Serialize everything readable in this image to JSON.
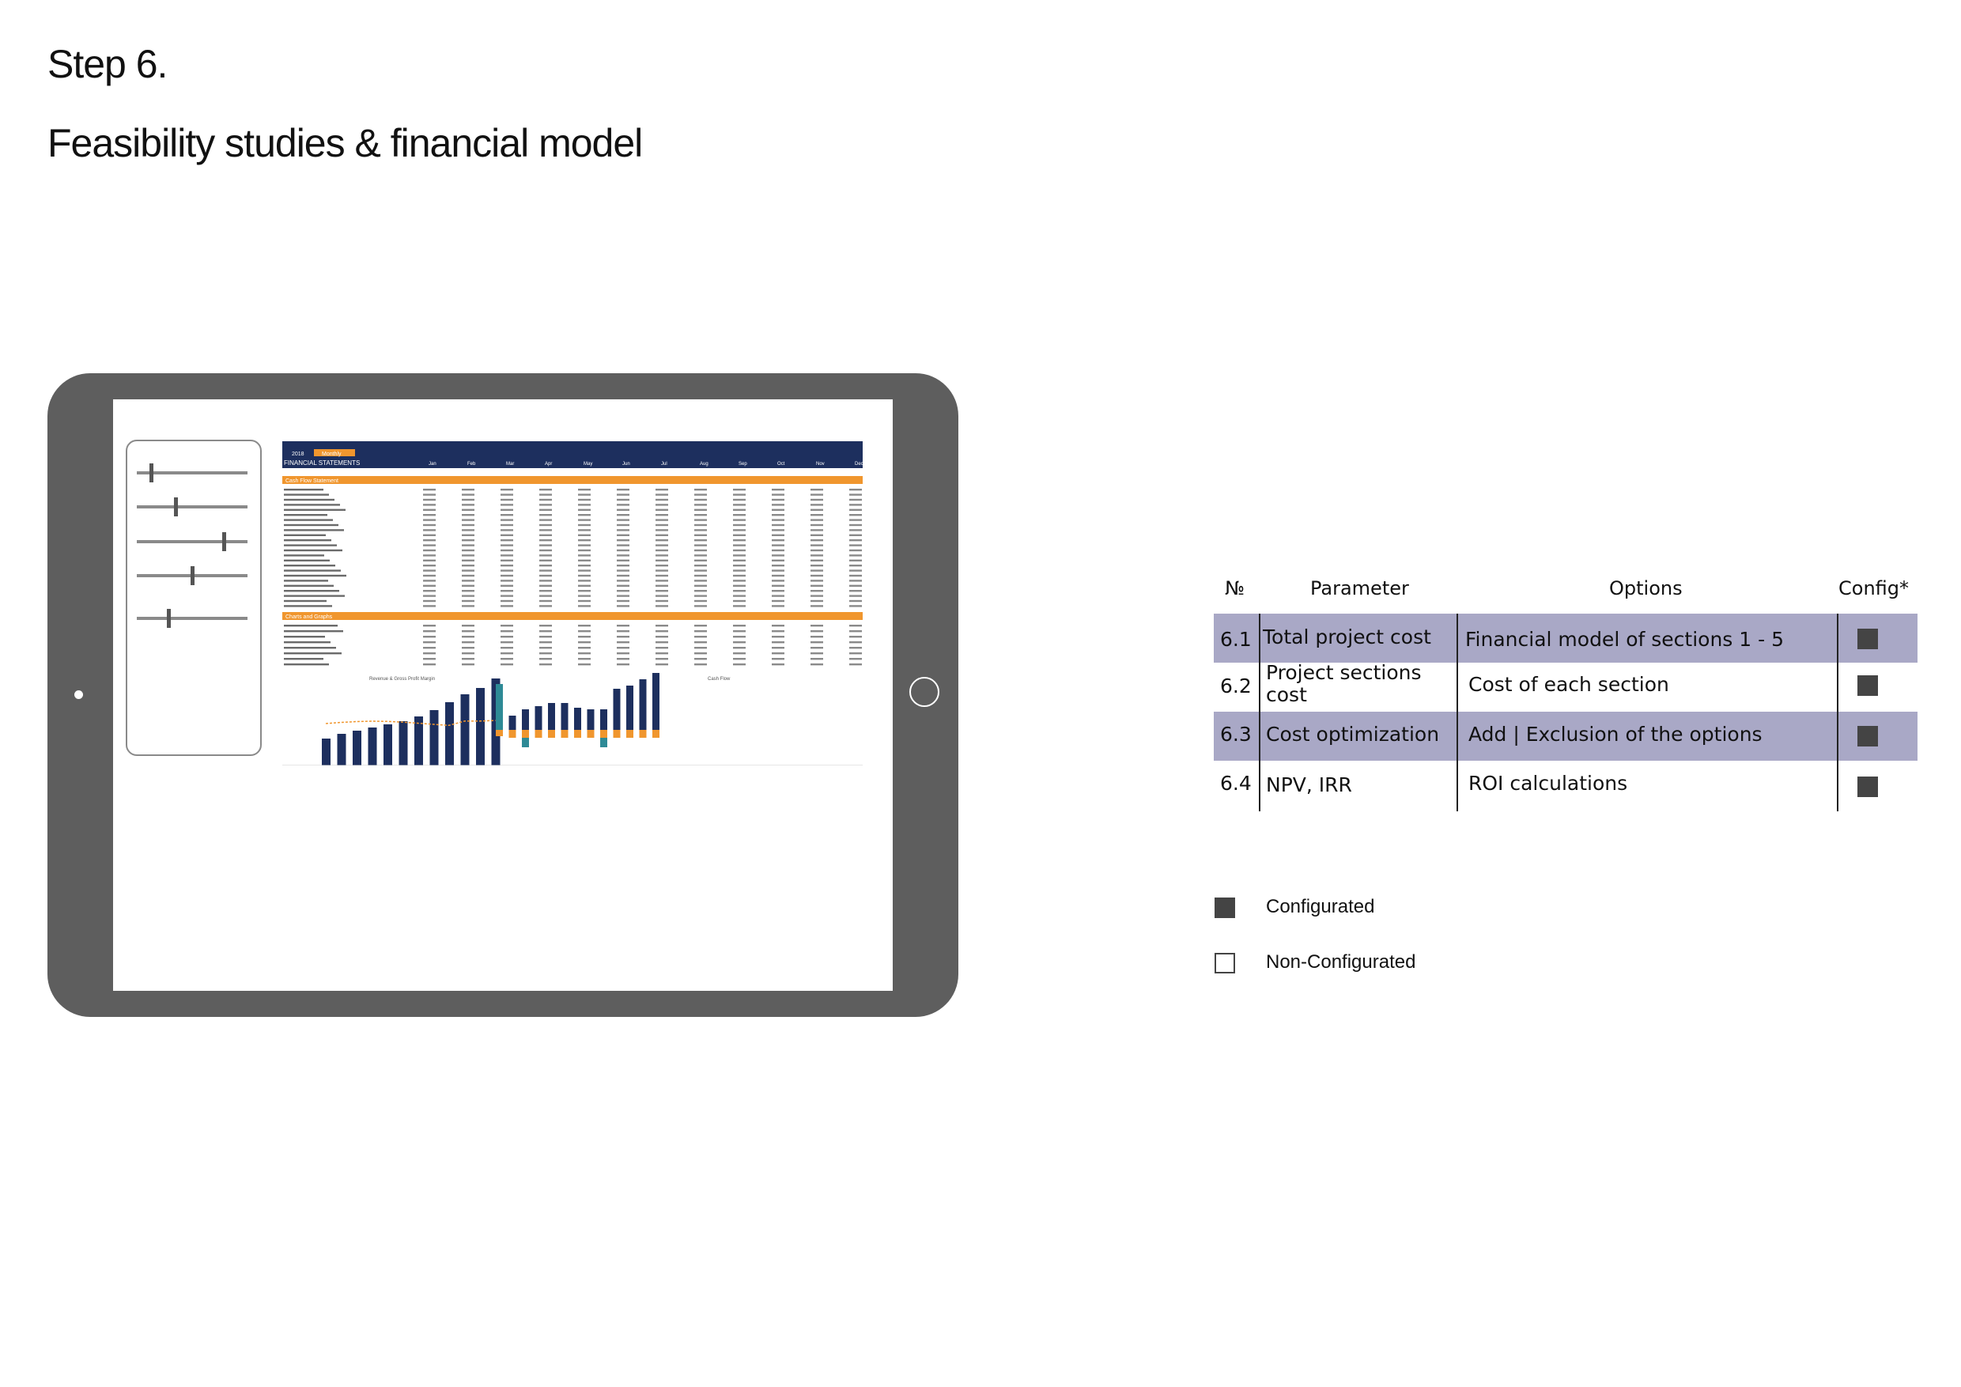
{
  "header": {
    "step": "Step 6.",
    "title": "Feasibility studies & financial model"
  },
  "table": {
    "headers": {
      "no": "№",
      "parameter": "Parameter",
      "options": "Options",
      "config": "Config*"
    },
    "rows": [
      {
        "no": "6.1",
        "parameter": "Total project cost",
        "option": "Financial model of sections 1 - 5",
        "configured": true,
        "shaded": true
      },
      {
        "no": "6.2",
        "parameter_line1": "Project sections",
        "parameter_line2": "cost",
        "option": "Cost of each section",
        "configured": true,
        "shaded": false
      },
      {
        "no": "6.3",
        "parameter": "Cost optimization",
        "option": "Add | Exclusion of the options",
        "configured": true,
        "shaded": true
      },
      {
        "no": "6.4",
        "parameter": "NPV, IRR",
        "option": "ROI calculations",
        "configured": true,
        "shaded": false
      }
    ]
  },
  "legend": {
    "configured": "Configurated",
    "non_configured": "Non-Configurated"
  },
  "spreadsheet": {
    "year": "2018",
    "period": "Monthly",
    "title": "FINANCIAL STATEMENTS",
    "months": [
      "Jan",
      "Feb",
      "Mar",
      "Apr",
      "May",
      "Jun",
      "Jul",
      "Aug",
      "Sep",
      "Oct",
      "Nov",
      "Dec"
    ],
    "section1": "Cash Flow Statement",
    "section2": "Charts and Graphs",
    "chart1_title": "Revenue & Gross Profit Margin",
    "chart2_title": "Cash Flow"
  },
  "sliders": {
    "levels": [
      0.12,
      0.35,
      0.8,
      0.5,
      0.28
    ]
  },
  "colors": {
    "tablet": "#5e5e5e",
    "navy": "#1d2f5e",
    "orange": "#f0962e",
    "teal": "#2e8a96",
    "row_shade": "#a9a8c6",
    "config_box": "#444444"
  }
}
